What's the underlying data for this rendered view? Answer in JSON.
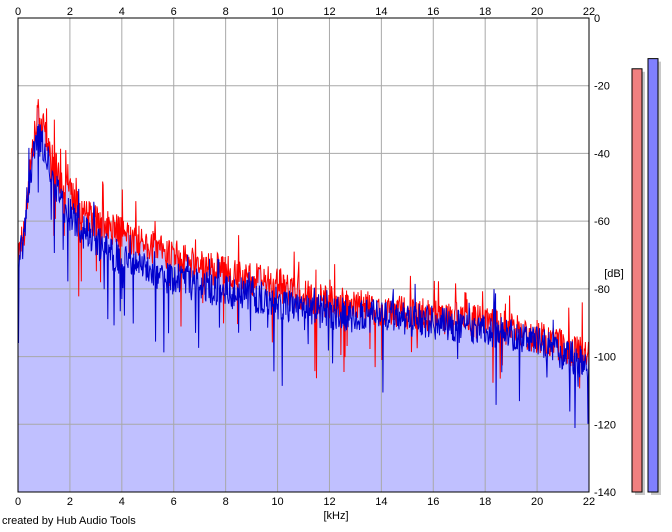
{
  "chart_data": {
    "type": "line",
    "title": "",
    "xlabel": "[kHz]",
    "ylabel": "[dB]",
    "xlim": [
      0,
      22
    ],
    "ylim": [
      -140,
      0
    ],
    "x_ticks": [
      0,
      2,
      4,
      6,
      8,
      10,
      12,
      14,
      16,
      18,
      20,
      22
    ],
    "x_tick_labels": [
      "0",
      "2",
      "4",
      "6",
      "8",
      "10",
      "12",
      "14",
      "16",
      "18",
      "20",
      "22"
    ],
    "y_ticks": [
      0,
      -20,
      -40,
      -60,
      -80,
      -100,
      -120,
      -140
    ],
    "y_tick_labels": [
      "0",
      "-20",
      "-40",
      "-60",
      "-80",
      "-100",
      "-120",
      "-140"
    ],
    "grid": true,
    "series": [
      {
        "color": "#ff0000",
        "x": [
          0,
          0.25,
          0.5,
          0.75,
          1.0,
          1.25,
          1.5,
          1.75,
          2.0,
          2.5,
          3.0,
          3.5,
          4.0,
          4.5,
          5.0,
          5.5,
          6.0,
          6.5,
          7.0,
          7.5,
          8.0,
          8.5,
          9.0,
          9.5,
          10.0,
          11.0,
          12.0,
          13.0,
          14.0,
          15.0,
          16.0,
          17.0,
          18.0,
          19.0,
          20.0,
          21.0,
          22.0
        ],
        "y": [
          -70,
          -62,
          -42,
          -30,
          -32,
          -40,
          -45,
          -50,
          -52,
          -58,
          -60,
          -62,
          -63,
          -66,
          -67,
          -69,
          -70,
          -72,
          -73,
          -74,
          -75,
          -76,
          -77,
          -78,
          -79,
          -82,
          -84,
          -85,
          -86,
          -87,
          -88,
          -89,
          -90,
          -92,
          -94,
          -97,
          -100
        ]
      },
      {
        "color": "#0000cc",
        "x": [
          0,
          0.25,
          0.5,
          0.75,
          1.0,
          1.25,
          1.5,
          1.75,
          2.0,
          2.5,
          3.0,
          3.5,
          4.0,
          4.5,
          5.0,
          5.5,
          6.0,
          6.5,
          7.0,
          7.5,
          8.0,
          8.5,
          9.0,
          9.5,
          10.0,
          11.0,
          12.0,
          13.0,
          14.0,
          15.0,
          16.0,
          17.0,
          18.0,
          19.0,
          20.0,
          21.0,
          22.0
        ],
        "y": [
          -72,
          -65,
          -45,
          -35,
          -38,
          -45,
          -50,
          -55,
          -58,
          -63,
          -66,
          -69,
          -71,
          -73,
          -74,
          -76,
          -77,
          -78,
          -79,
          -80,
          -81,
          -81,
          -82,
          -83,
          -84,
          -86,
          -87,
          -88,
          -88,
          -89,
          -90,
          -91,
          -92,
          -94,
          -96,
          -99,
          -103
        ]
      }
    ],
    "fill": {
      "color": "#c0c0ff",
      "under": "spectrum envelope"
    },
    "level_meters": [
      {
        "color": "#f08080",
        "level_db": -15
      },
      {
        "color": "#8080ff",
        "level_db": -12
      }
    ]
  },
  "footer": {
    "credit": "created by Hub Audio Tools"
  }
}
